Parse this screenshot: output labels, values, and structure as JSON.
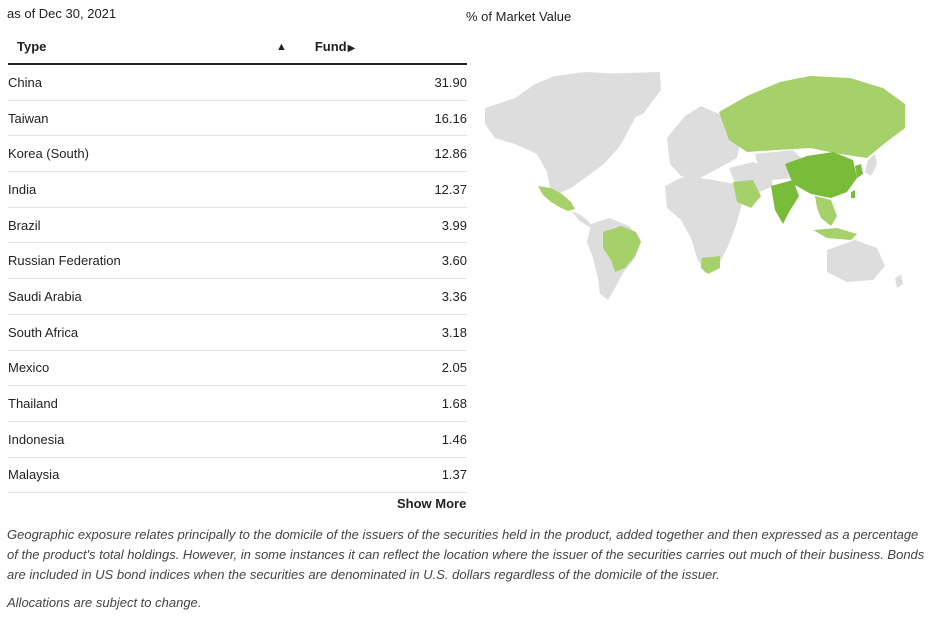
{
  "as_of": "as of Dec 30, 2021",
  "map_title": "% of Market Value",
  "table": {
    "columns": {
      "type": "Type",
      "fund": "Fund"
    },
    "sort_indicator": "up-triangle",
    "rows": [
      {
        "name": "China",
        "value": "31.90"
      },
      {
        "name": "Taiwan",
        "value": "16.16"
      },
      {
        "name": "Korea (South)",
        "value": "12.86"
      },
      {
        "name": "India",
        "value": "12.37"
      },
      {
        "name": "Brazil",
        "value": "3.99"
      },
      {
        "name": "Russian Federation",
        "value": "3.60"
      },
      {
        "name": "Saudi Arabia",
        "value": "3.36"
      },
      {
        "name": "South Africa",
        "value": "3.18"
      },
      {
        "name": "Mexico",
        "value": "2.05"
      },
      {
        "name": "Thailand",
        "value": "1.68"
      },
      {
        "name": "Indonesia",
        "value": "1.46"
      },
      {
        "name": "Malaysia",
        "value": "1.37"
      }
    ]
  },
  "show_more": "Show More",
  "footnote": "Geographic exposure relates principally to the domicile of the issuers of the securities held in the product, added together and then expressed as a percentage of the product's total holdings. However, in some instances it can reflect the location where the issuer of the securities carries out much of their business. Bonds are included in US bond indices when the securities are denominated in U.S. dollars regardless of the domicile of the issuer.",
  "footnote2": "Allocations are subject to change.",
  "colors": {
    "map_base": "#dddddd",
    "map_light": "#a6d06a",
    "map_dark": "#78bc3a",
    "header_rule": "#222222",
    "row_rule": "#e3e3e3"
  }
}
